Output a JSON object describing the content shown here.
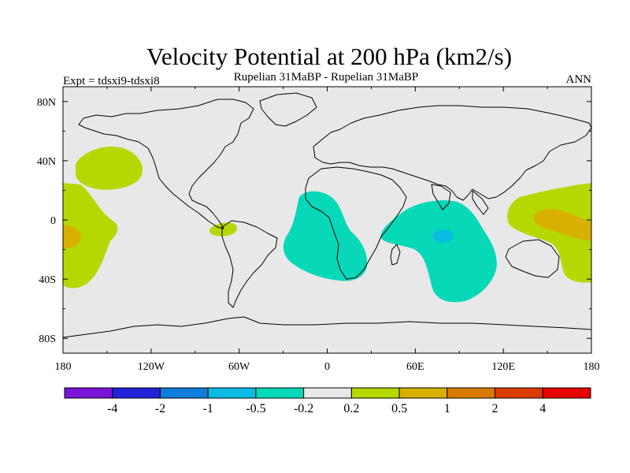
{
  "chart_data": {
    "type": "contour-map",
    "title": "Velocity Potential at 200 hPa (km2/s)",
    "subtitle_left": "Expt = tdsxi9-tdsxi8",
    "subtitle_center": "Rupelian  31MaBP - Rupelian  31MaBP",
    "subtitle_right": "ANN",
    "lon_range": [
      -180,
      180
    ],
    "lat_range": [
      -90,
      90
    ],
    "lon_ticks": [
      -180,
      -120,
      -60,
      0,
      60,
      120,
      180
    ],
    "lon_tick_labels": [
      "180",
      "120W",
      "60W",
      "0",
      "60E",
      "120E",
      "180"
    ],
    "lat_ticks": [
      80,
      40,
      0,
      -40,
      -80
    ],
    "lat_tick_labels": [
      "80N",
      "40N",
      "0",
      "40S",
      "80S"
    ],
    "levels": [
      -4,
      -2,
      -1,
      -0.5,
      -0.2,
      0.2,
      0.5,
      1,
      2,
      4
    ],
    "level_labels": [
      "-4",
      "-2",
      "-1",
      "-0.5",
      "-0.2",
      "0.2",
      "0.5",
      "1",
      "2",
      "4"
    ],
    "colors": [
      "#7a14d8",
      "#2222d6",
      "#0f7ddb",
      "#0cbbe4",
      "#06d8b8",
      "#e8e8e8",
      "#b5d800",
      "#d8b000",
      "#d87a00",
      "#dc3c00",
      "#e80000"
    ],
    "background_value_class": "-0.2 to 0.2",
    "regions": [
      {
        "name": "north-pacific-positive",
        "value_class": "0.2 to 0.5",
        "center_lon": -165,
        "center_lat": 38
      },
      {
        "name": "central-pacific-positive",
        "value_class": "0.2 to 0.5",
        "center_lon": -172,
        "center_lat": -5
      },
      {
        "name": "central-pacific-max",
        "value_class": "0.5 to 1",
        "center_lon": -178,
        "center_lat": -10
      },
      {
        "name": "south-america-positive",
        "value_class": "0.2 to 0.5",
        "center_lon": -69,
        "center_lat": -6
      },
      {
        "name": "atlantic-negative",
        "value_class": "-0.5 to -0.2",
        "center_lon": -5,
        "center_lat": -15
      },
      {
        "name": "indian-ocean-negative",
        "value_class": "-0.5 to -0.2",
        "center_lon": 75,
        "center_lat": -18
      },
      {
        "name": "indian-ocean-min",
        "value_class": "-1 to -0.5",
        "center_lon": 76,
        "center_lat": -12
      },
      {
        "name": "west-pacific-positive",
        "value_class": "0.2 to 0.5",
        "center_lon": 155,
        "center_lat": 0
      },
      {
        "name": "west-pacific-max",
        "value_class": "0.5 to 1",
        "center_lon": 150,
        "center_lat": -2
      }
    ]
  }
}
